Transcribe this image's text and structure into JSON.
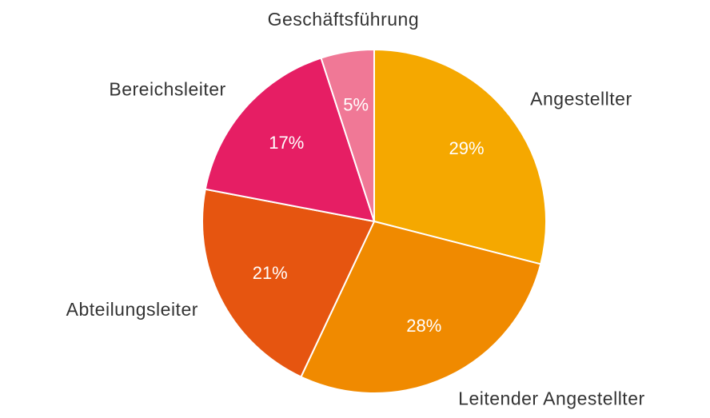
{
  "chart_data": {
    "type": "pie",
    "categories": [
      "Angestellter",
      "Leitender Angestellter",
      "Abteilungsleiter",
      "Bereichsleiter",
      "Geschäftsführung"
    ],
    "values": [
      29,
      28,
      21,
      17,
      5
    ],
    "value_labels": [
      "29%",
      "28%",
      "21%",
      "17%",
      "5%"
    ],
    "colors": [
      "#f5a800",
      "#f08a00",
      "#e65510",
      "#e61e64",
      "#f07896"
    ]
  }
}
